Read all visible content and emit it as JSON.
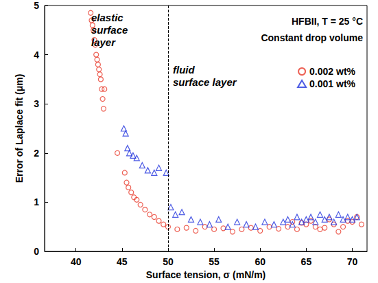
{
  "chart_data": {
    "type": "scatter",
    "x_label": "Surface tension, σ (mN/m)",
    "y_label": "Error of Laplace fit (μm)",
    "annotations": [
      "elastic surface layer",
      "fluid surface layer",
      "HFBII, T = 25 °C",
      "Constant drop volume"
    ],
    "reference_line": {
      "x": 50,
      "line_style": "dashed"
    },
    "xlim": [
      36.6,
      71.6
    ],
    "xticks": [
      40,
      45,
      50,
      55,
      60,
      65,
      70
    ],
    "ylim": [
      0,
      5
    ],
    "yticks": [
      0,
      1,
      2,
      3,
      4,
      5
    ],
    "grid": false,
    "legend": "upper right",
    "series": [
      {
        "name": "0.002 wt%",
        "color": "#e8392a",
        "marker": "circle",
        "x": [
          41.6,
          41.7,
          41.8,
          41.9,
          42.0,
          42.1,
          42.2,
          42.3,
          42.4,
          42.5,
          42.6,
          42.7,
          42.8,
          42.9,
          43.0,
          43.1,
          44.5,
          45.3,
          45.5,
          45.7,
          46.0,
          46.3,
          46.6,
          47.0,
          47.5,
          48.0,
          48.5,
          49.0,
          49.5,
          50.0,
          51,
          52,
          53,
          54,
          55,
          56,
          57,
          58,
          59,
          60,
          61,
          62,
          63,
          64,
          65,
          66,
          67,
          68,
          69,
          70,
          71,
          63.5,
          64.5,
          65.5,
          66.5,
          67.5,
          68.5,
          69.5,
          70.5
        ],
        "values": [
          4.85,
          4.7,
          4.6,
          4.5,
          4.3,
          4.2,
          4.0,
          3.9,
          3.8,
          3.7,
          3.6,
          3.5,
          3.3,
          3.1,
          2.9,
          3.3,
          2.0,
          1.6,
          1.4,
          1.3,
          1.2,
          1.1,
          1.05,
          0.95,
          0.85,
          0.75,
          0.7,
          0.62,
          0.55,
          0.5,
          0.45,
          0.48,
          0.42,
          0.5,
          0.45,
          0.47,
          0.4,
          0.45,
          0.48,
          0.42,
          0.5,
          0.46,
          0.5,
          0.45,
          0.55,
          0.5,
          0.48,
          0.55,
          0.5,
          0.6,
          0.55,
          0.6,
          0.58,
          0.62,
          0.45,
          0.65,
          0.4,
          0.62,
          0.7
        ]
      },
      {
        "name": "0.001 wt%",
        "color": "#2233dd",
        "marker": "triangle",
        "x": [
          45.2,
          45.4,
          45.6,
          45.8,
          46.2,
          46.6,
          47.2,
          47.8,
          48.5,
          49.0,
          49.8,
          50.3,
          50.8,
          51.5,
          52.5,
          53.5,
          54.5,
          55.5,
          56.5,
          57.5,
          58.5,
          59.5,
          60.5,
          61.5,
          62.5,
          63,
          63.5,
          64,
          64.5,
          65,
          65.5,
          66,
          66.5,
          67,
          67.5,
          68,
          68.5,
          69,
          69.5,
          70,
          70.5
        ],
        "values": [
          2.5,
          2.4,
          2.1,
          2.0,
          1.95,
          1.9,
          1.75,
          1.65,
          1.6,
          1.7,
          1.6,
          0.9,
          0.75,
          0.8,
          0.65,
          0.6,
          0.55,
          0.65,
          0.5,
          0.6,
          0.55,
          0.5,
          0.6,
          0.55,
          0.6,
          0.65,
          0.55,
          0.7,
          0.6,
          0.65,
          0.7,
          0.6,
          0.75,
          0.65,
          0.7,
          0.6,
          0.75,
          0.65,
          0.7,
          0.65,
          0.7
        ]
      }
    ]
  }
}
